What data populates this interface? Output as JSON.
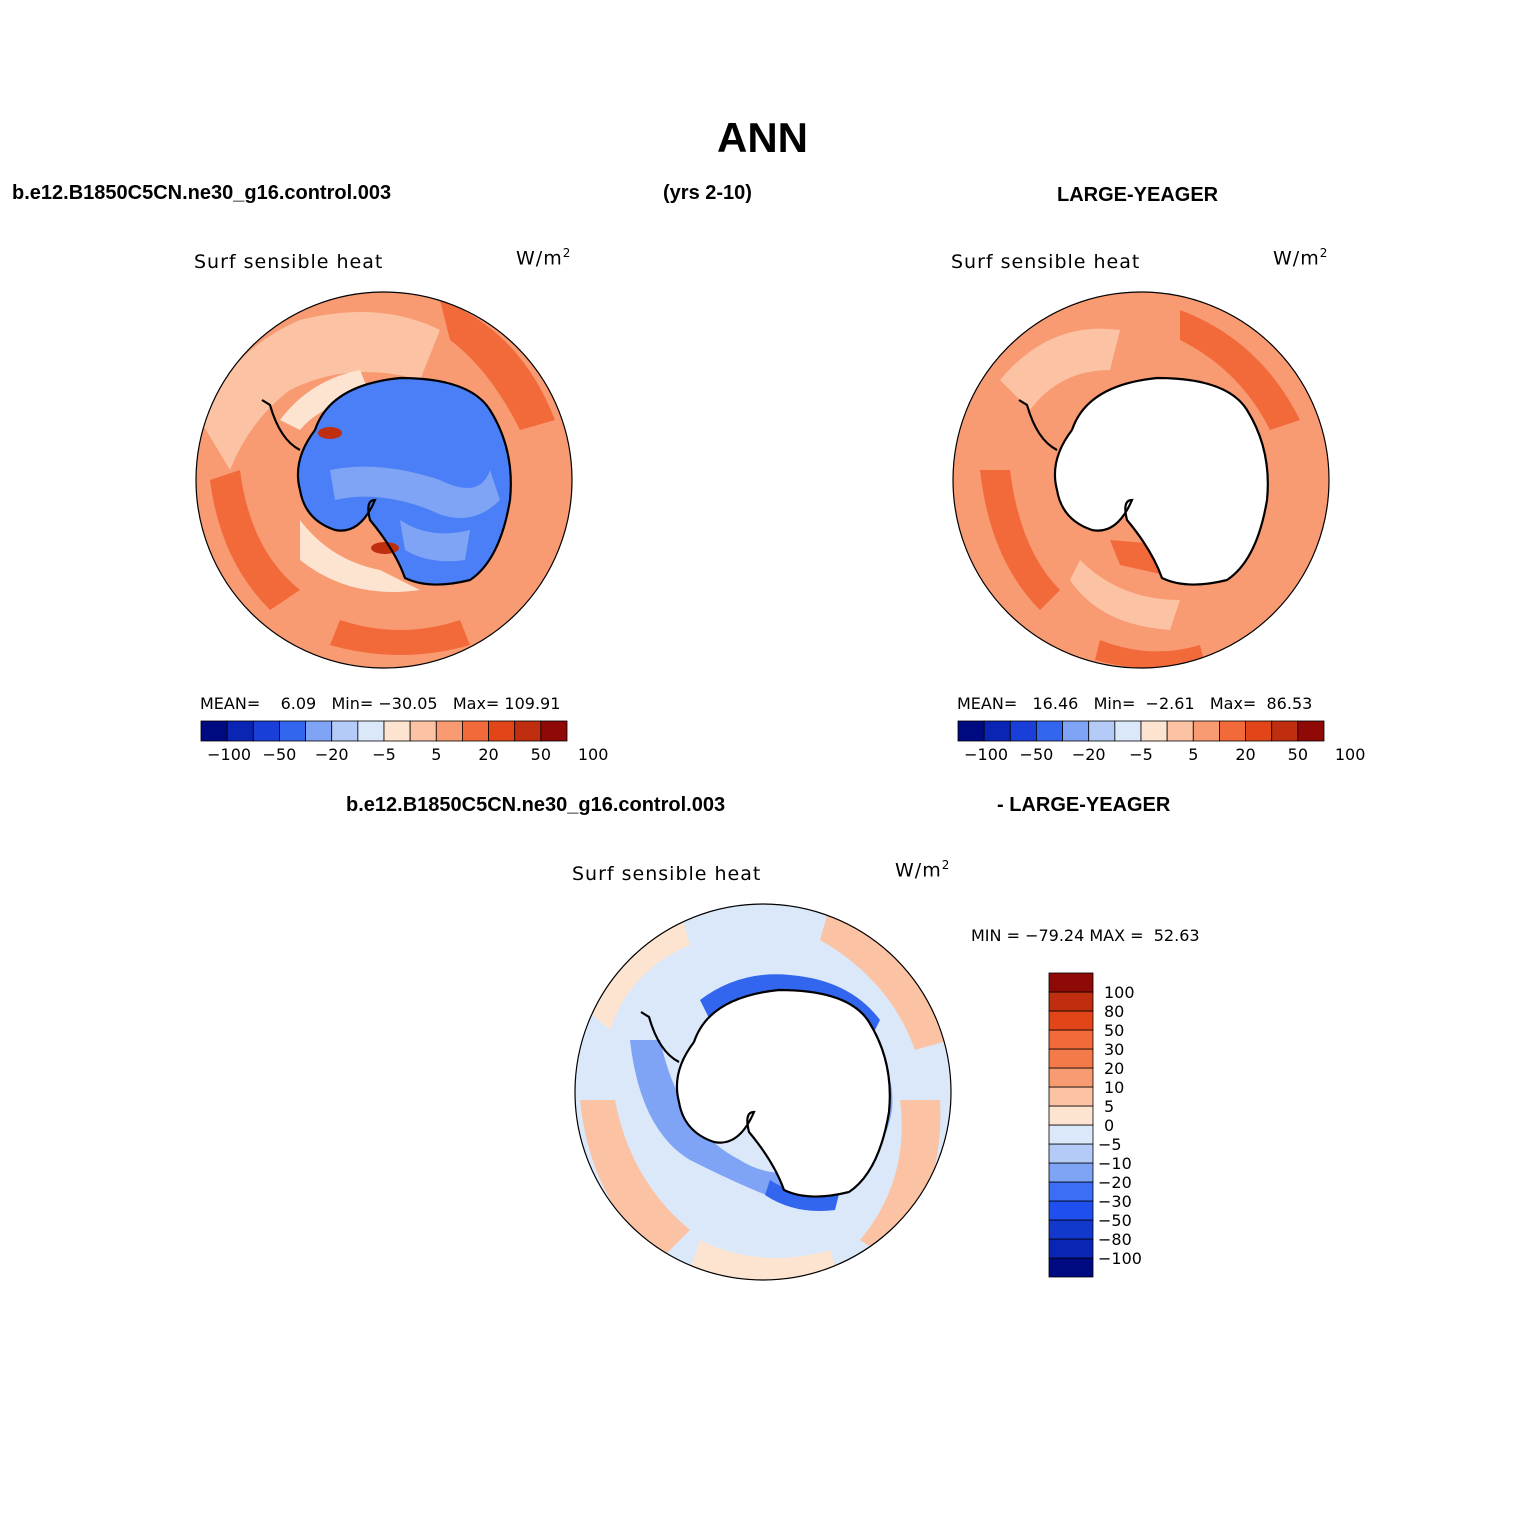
{
  "title": "ANN",
  "header": {
    "case": "b.e12.B1850C5CN.ne30_g16.control.003",
    "years": "(yrs 2-10)",
    "obs": "LARGE-YEAGER"
  },
  "panel_left": {
    "title": "Surf sensible heat",
    "units": "W/m",
    "units_sup": "2",
    "mean_label": "MEAN=",
    "mean": "6.09",
    "min_label": "Min=",
    "min": "−30.05",
    "max_label": "Max=",
    "max": "109.91"
  },
  "panel_right": {
    "title": "Surf sensible heat",
    "units": "W/m",
    "units_sup": "2",
    "mean_label": "MEAN=",
    "mean": "16.46",
    "min_label": "Min=",
    "min": "−2.61",
    "max_label": "Max=",
    "max": "86.53"
  },
  "diff_header": {
    "case": "b.e12.B1850C5CN.ne30_g16.control.003",
    "obs": "- LARGE-YEAGER"
  },
  "panel_diff": {
    "title": "Surf sensible heat",
    "units": "W/m",
    "units_sup": "2",
    "minmax": "MIN = −79.24 MAX =  52.63"
  },
  "colorbar_abs": {
    "colors": [
      "#000a80",
      "#0a24b3",
      "#1a3fd9",
      "#3366ee",
      "#7fa3f5",
      "#b4caf7",
      "#dbe8fa",
      "#fde4d0",
      "#fbc3a3",
      "#f89a72",
      "#f26a3a",
      "#e24518",
      "#bf2e0e",
      "#8f0a06"
    ],
    "ticks": [
      "−100",
      "−50",
      "−20",
      "−5",
      "5",
      "20",
      "50",
      "100"
    ]
  },
  "colorbar_diff": {
    "colors": [
      "#000a80",
      "#0a24b3",
      "#1238cc",
      "#1f4fef",
      "#3b6ef5",
      "#7fa3f5",
      "#b4caf7",
      "#dbe8fa",
      "#fde4d0",
      "#fbc3a3",
      "#f89a72",
      "#f57a4a",
      "#f26a3a",
      "#e24518",
      "#bf2e0e",
      "#8f0a06"
    ],
    "labels": [
      "100",
      "80",
      "50",
      "30",
      "20",
      "10",
      "5",
      "0",
      "−5",
      "−10",
      "−20",
      "−30",
      "−50",
      "−80",
      "−100"
    ]
  }
}
